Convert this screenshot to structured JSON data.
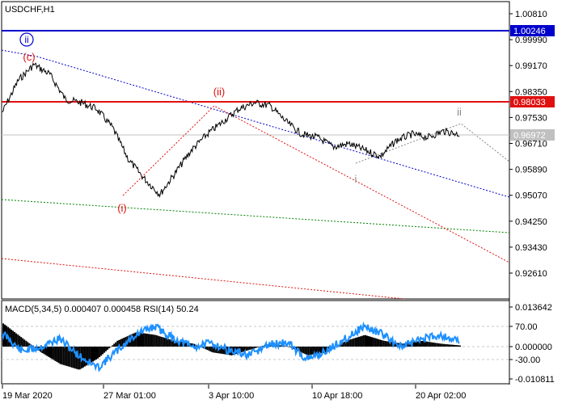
{
  "title": "USDCHF,H1",
  "price_axis": {
    "ticks": [
      "1.00810",
      "0.99990",
      "0.99170",
      "0.98350",
      "0.97530",
      "0.96710",
      "0.95890",
      "0.95070",
      "0.94250",
      "0.93430",
      "0.92610"
    ],
    "tick_values": [
      1.0081,
      0.9999,
      0.9917,
      0.9835,
      0.9753,
      0.9671,
      0.9589,
      0.9507,
      0.9425,
      0.9343,
      0.9261
    ]
  },
  "levels": {
    "blue": {
      "label": "1.00246",
      "value": 1.00246,
      "color": "#0000cc"
    },
    "red": {
      "label": "0.98033",
      "value": 0.98033,
      "color": "#e01010"
    },
    "current": {
      "label": "0.96972",
      "value": 0.96972,
      "color": "#c0c0c0"
    }
  },
  "wave_labels": {
    "ii_circled": "ii",
    "c": "(c)",
    "i_paren": "(i)",
    "ii_paren": "(ii)",
    "i_small": "i",
    "ii_small": "ii"
  },
  "indicator": {
    "label": "MACD(5,34,5) 0.000407 0.000458 RSI(14) 50.24",
    "ticks": [
      "0.013642",
      "70.00",
      "0.000000",
      "-30.00",
      "-0.010811"
    ]
  },
  "time_axis": {
    "labels": [
      "19 Mar 2020",
      "27 Mar 01:00",
      "3 Apr 10:00",
      "10 Apr 18:00",
      "20 Apr 02:00"
    ]
  },
  "colors": {
    "price": "#000000",
    "rsi": "#1e90ff",
    "macd_hist": "#000000",
    "wave_red": "#e01010",
    "wave_blue": "#0000cc",
    "grid": "#c8c8c8"
  },
  "chart_data": {
    "type": "line",
    "symbol": "USDCHF",
    "timeframe": "H1",
    "price_keypoints": [
      0.977,
      0.987,
      0.992,
      0.989,
      0.981,
      0.98,
      0.978,
      0.972,
      0.962,
      0.956,
      0.951,
      0.958,
      0.965,
      0.97,
      0.974,
      0.978,
      0.98,
      0.979,
      0.974,
      0.97,
      0.969,
      0.966,
      0.967,
      0.965,
      0.963,
      0.968,
      0.97,
      0.969,
      0.971,
      0.97
    ],
    "rsi_keypoints": [
      62,
      40,
      45,
      55,
      35,
      20,
      40,
      60,
      70,
      55,
      45,
      50,
      40,
      35,
      48,
      50,
      30,
      40,
      55,
      70,
      60,
      45,
      55,
      60,
      52
    ],
    "macd_keypoints": [
      0.008,
      0.003,
      -0.002,
      -0.006,
      -0.008,
      -0.004,
      0.002,
      0.005,
      0.004,
      0.002,
      0.001,
      -0.002,
      -0.003,
      -0.001,
      0.001,
      0.0,
      -0.003,
      -0.002,
      0.002,
      0.004,
      0.002,
      0.001,
      0.002,
      0.001,
      0.0004
    ]
  }
}
